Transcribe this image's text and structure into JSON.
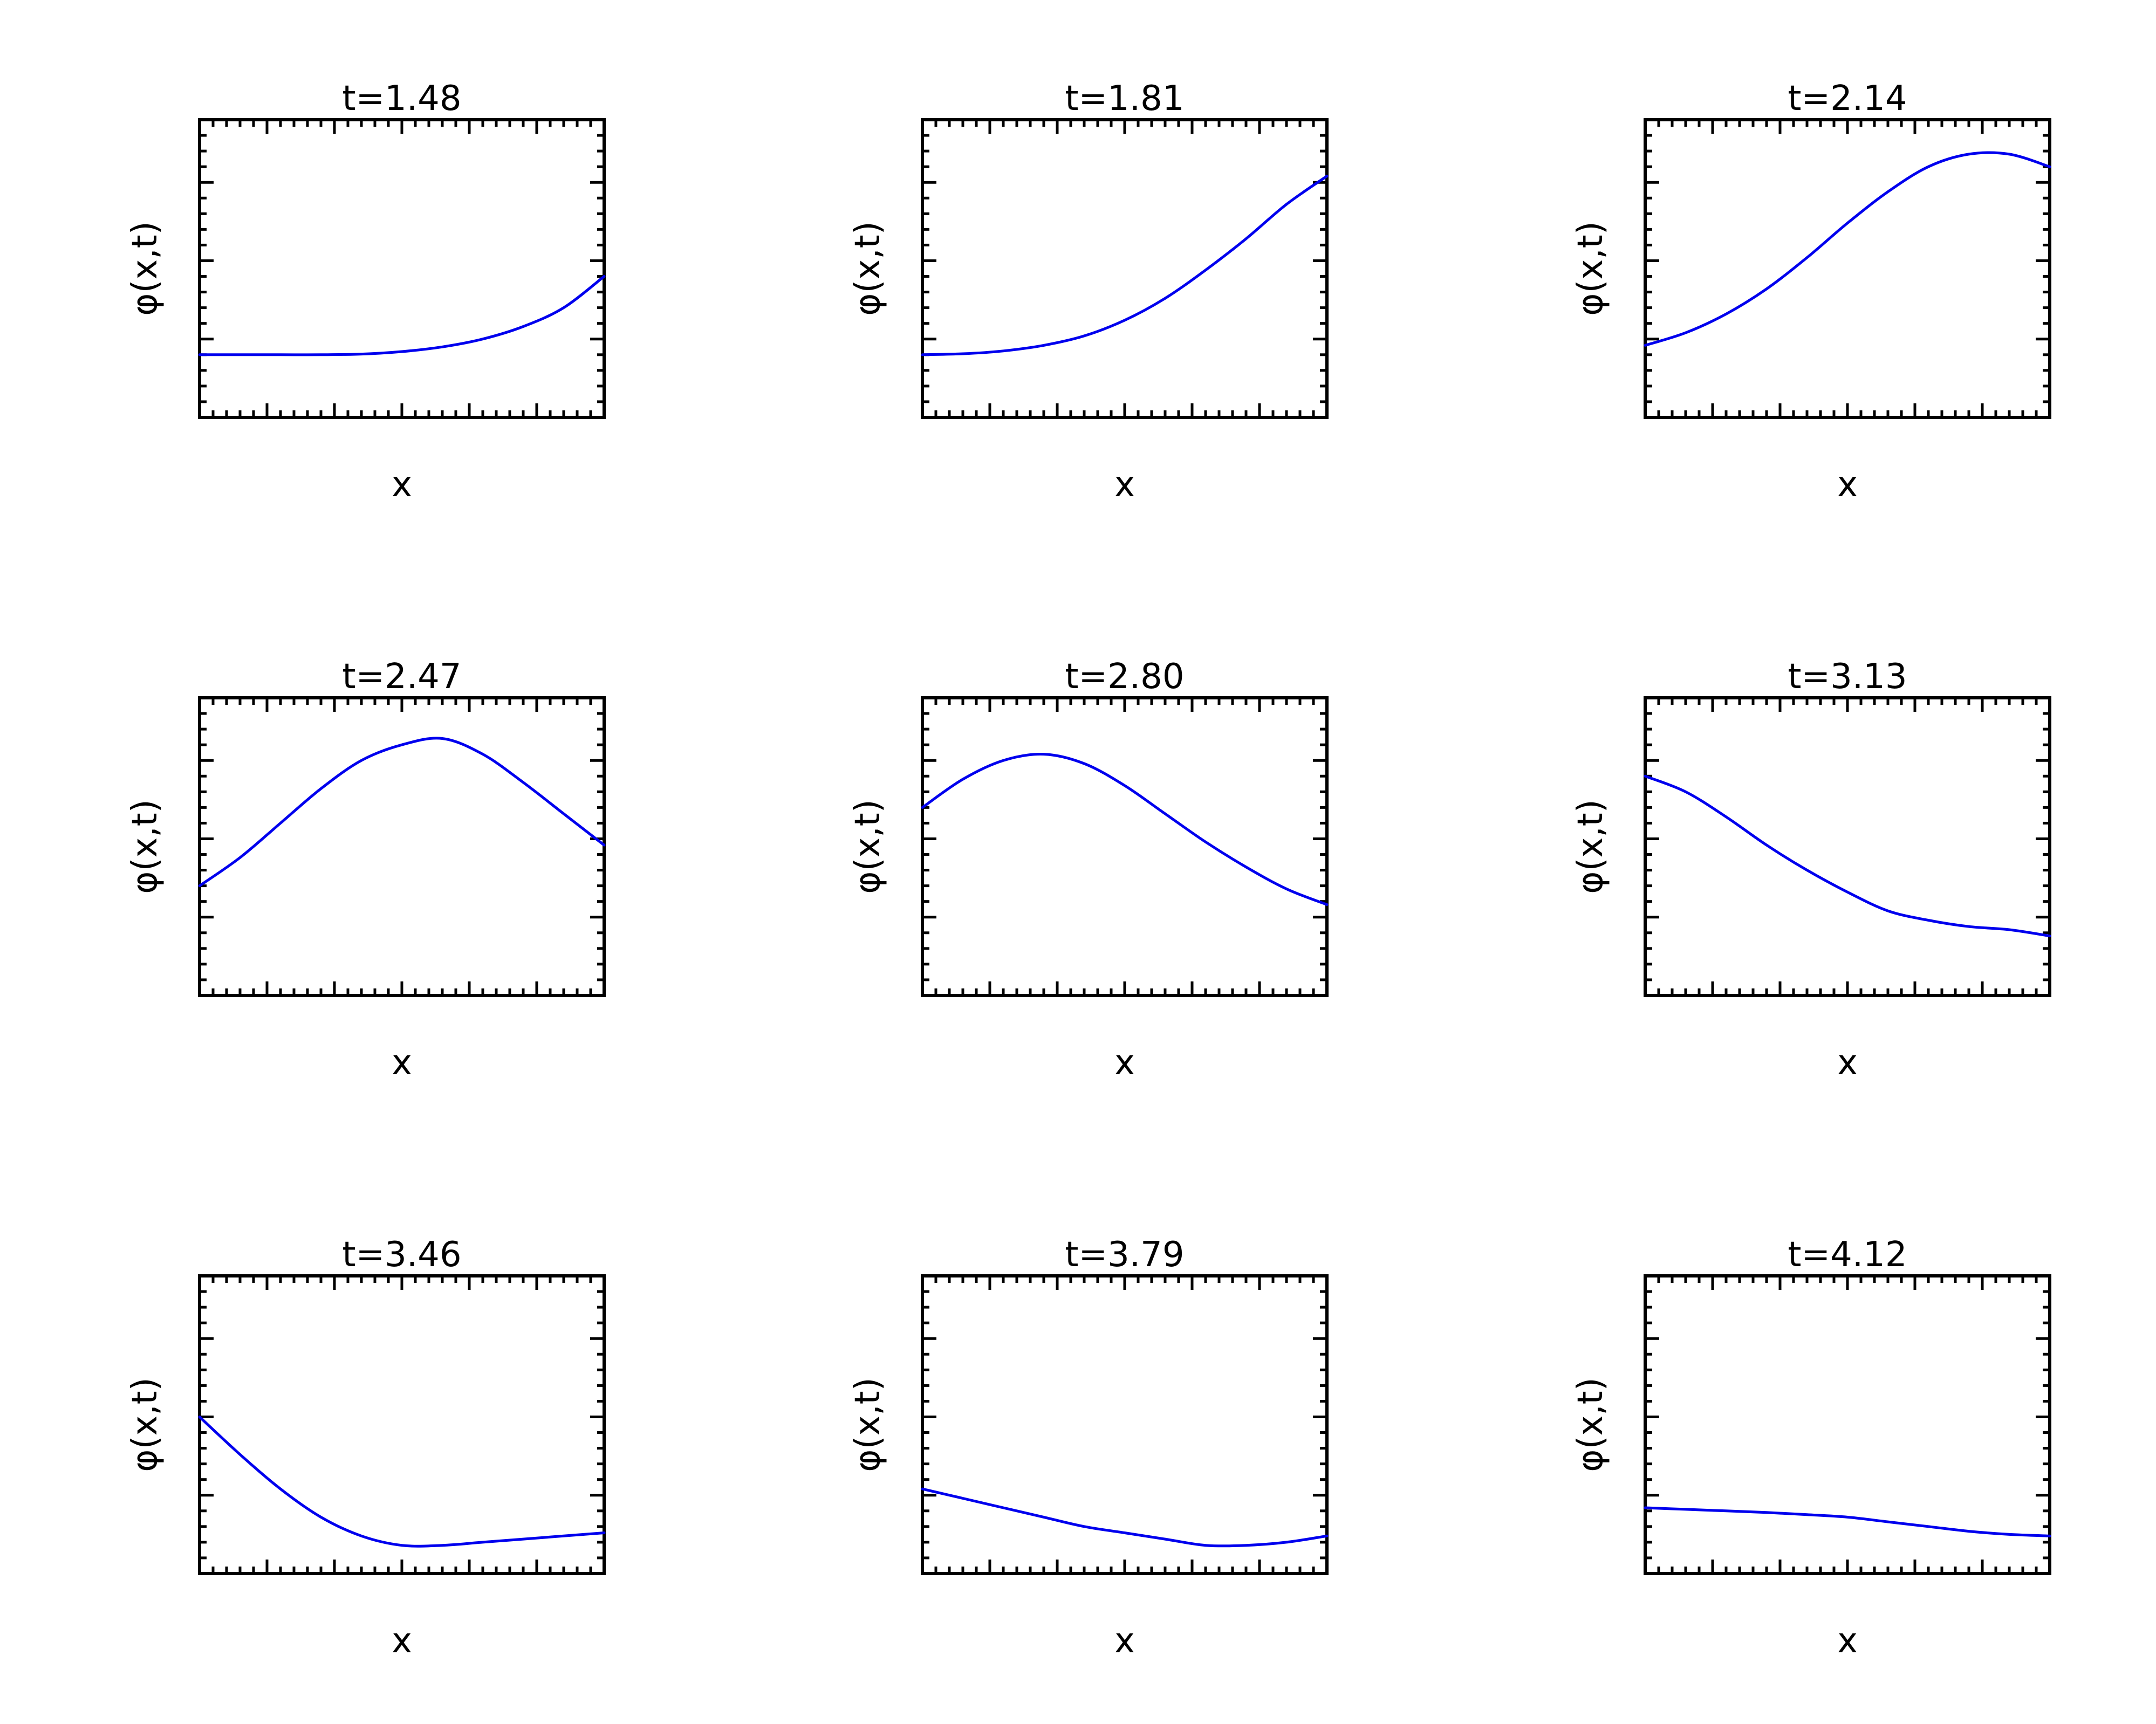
{
  "figure": {
    "line_color": "#0000ee",
    "frame_color": "#000000"
  },
  "chart_data": [
    {
      "type": "line",
      "title": "t=1.48",
      "xlabel": "x",
      "ylabel": "φ(x,t)",
      "xlim": [
        0,
        1
      ],
      "ylim": [
        -0.2,
        0.75
      ],
      "x": [
        0,
        0.1,
        0.2,
        0.3,
        0.4,
        0.5,
        0.6,
        0.7,
        0.8,
        0.9,
        1.0
      ],
      "series": [
        {
          "name": "φ",
          "values": [
            0.0,
            0.0,
            0.0,
            0.0,
            0.002,
            0.01,
            0.025,
            0.05,
            0.09,
            0.15,
            0.25
          ]
        }
      ]
    },
    {
      "type": "line",
      "title": "t=1.81",
      "xlabel": "x",
      "ylabel": "φ(x,t)",
      "xlim": [
        0,
        1
      ],
      "ylim": [
        -0.2,
        0.75
      ],
      "x": [
        0,
        0.1,
        0.2,
        0.3,
        0.4,
        0.5,
        0.6,
        0.7,
        0.8,
        0.9,
        1.0
      ],
      "series": [
        {
          "name": "φ",
          "values": [
            0.0,
            0.003,
            0.012,
            0.03,
            0.06,
            0.11,
            0.18,
            0.27,
            0.37,
            0.48,
            0.57
          ]
        }
      ]
    },
    {
      "type": "line",
      "title": "t=2.14",
      "xlabel": "x",
      "ylabel": "φ(x,t)",
      "xlim": [
        0,
        1
      ],
      "ylim": [
        -0.2,
        0.75
      ],
      "x": [
        0,
        0.1,
        0.2,
        0.3,
        0.4,
        0.5,
        0.6,
        0.7,
        0.8,
        0.9,
        1.0
      ],
      "series": [
        {
          "name": "φ",
          "values": [
            0.03,
            0.07,
            0.13,
            0.21,
            0.31,
            0.42,
            0.52,
            0.6,
            0.64,
            0.64,
            0.6
          ]
        }
      ]
    },
    {
      "type": "line",
      "title": "t=2.47",
      "xlabel": "x",
      "ylabel": "φ(x,t)",
      "xlim": [
        0,
        1
      ],
      "ylim": [
        -0.2,
        0.75
      ],
      "x": [
        0,
        0.1,
        0.2,
        0.3,
        0.4,
        0.5,
        0.6,
        0.7,
        0.8,
        0.9,
        1.0
      ],
      "series": [
        {
          "name": "φ",
          "values": [
            0.15,
            0.24,
            0.35,
            0.46,
            0.55,
            0.6,
            0.62,
            0.57,
            0.48,
            0.38,
            0.28
          ]
        }
      ]
    },
    {
      "type": "line",
      "title": "t=2.80",
      "xlabel": "x",
      "ylabel": "φ(x,t)",
      "xlim": [
        0,
        1
      ],
      "ylim": [
        -0.2,
        0.75
      ],
      "x": [
        0,
        0.1,
        0.2,
        0.3,
        0.4,
        0.5,
        0.6,
        0.7,
        0.8,
        0.9,
        1.0
      ],
      "series": [
        {
          "name": "φ",
          "values": [
            0.4,
            0.49,
            0.55,
            0.57,
            0.54,
            0.47,
            0.38,
            0.29,
            0.21,
            0.14,
            0.09
          ]
        }
      ]
    },
    {
      "type": "line",
      "title": "t=3.13",
      "xlabel": "x",
      "ylabel": "φ(x,t)",
      "xlim": [
        0,
        1
      ],
      "ylim": [
        -0.2,
        0.75
      ],
      "x": [
        0,
        0.1,
        0.2,
        0.3,
        0.4,
        0.5,
        0.6,
        0.7,
        0.8,
        0.9,
        1.0
      ],
      "series": [
        {
          "name": "φ",
          "values": [
            0.5,
            0.45,
            0.37,
            0.28,
            0.2,
            0.13,
            0.07,
            0.04,
            0.02,
            0.01,
            -0.01
          ]
        }
      ]
    },
    {
      "type": "line",
      "title": "t=3.46",
      "xlabel": "x",
      "ylabel": "φ(x,t)",
      "xlim": [
        0,
        1
      ],
      "ylim": [
        -0.2,
        0.75
      ],
      "x": [
        0,
        0.1,
        0.2,
        0.3,
        0.4,
        0.5,
        0.6,
        0.7,
        0.8,
        0.9,
        1.0
      ],
      "series": [
        {
          "name": "φ",
          "values": [
            0.3,
            0.18,
            0.07,
            -0.02,
            -0.08,
            -0.11,
            -0.11,
            -0.1,
            -0.09,
            -0.08,
            -0.07
          ]
        }
      ]
    },
    {
      "type": "line",
      "title": "t=3.79",
      "xlabel": "x",
      "ylabel": "φ(x,t)",
      "xlim": [
        0,
        1
      ],
      "ylim": [
        -0.2,
        0.75
      ],
      "x": [
        0,
        0.1,
        0.2,
        0.3,
        0.4,
        0.5,
        0.6,
        0.7,
        0.8,
        0.9,
        1.0
      ],
      "series": [
        {
          "name": "φ",
          "values": [
            0.07,
            0.04,
            0.01,
            -0.02,
            -0.05,
            -0.07,
            -0.09,
            -0.11,
            -0.11,
            -0.1,
            -0.08
          ]
        }
      ]
    },
    {
      "type": "line",
      "title": "t=4.12",
      "xlabel": "x",
      "ylabel": "φ(x,t)",
      "xlim": [
        0,
        1
      ],
      "ylim": [
        -0.2,
        0.75
      ],
      "x": [
        0,
        0.1,
        0.2,
        0.3,
        0.4,
        0.5,
        0.6,
        0.7,
        0.8,
        0.9,
        1.0
      ],
      "series": [
        {
          "name": "φ",
          "values": [
            0.01,
            0.005,
            0.0,
            -0.005,
            -0.012,
            -0.02,
            -0.035,
            -0.05,
            -0.065,
            -0.075,
            -0.08
          ]
        }
      ]
    }
  ]
}
